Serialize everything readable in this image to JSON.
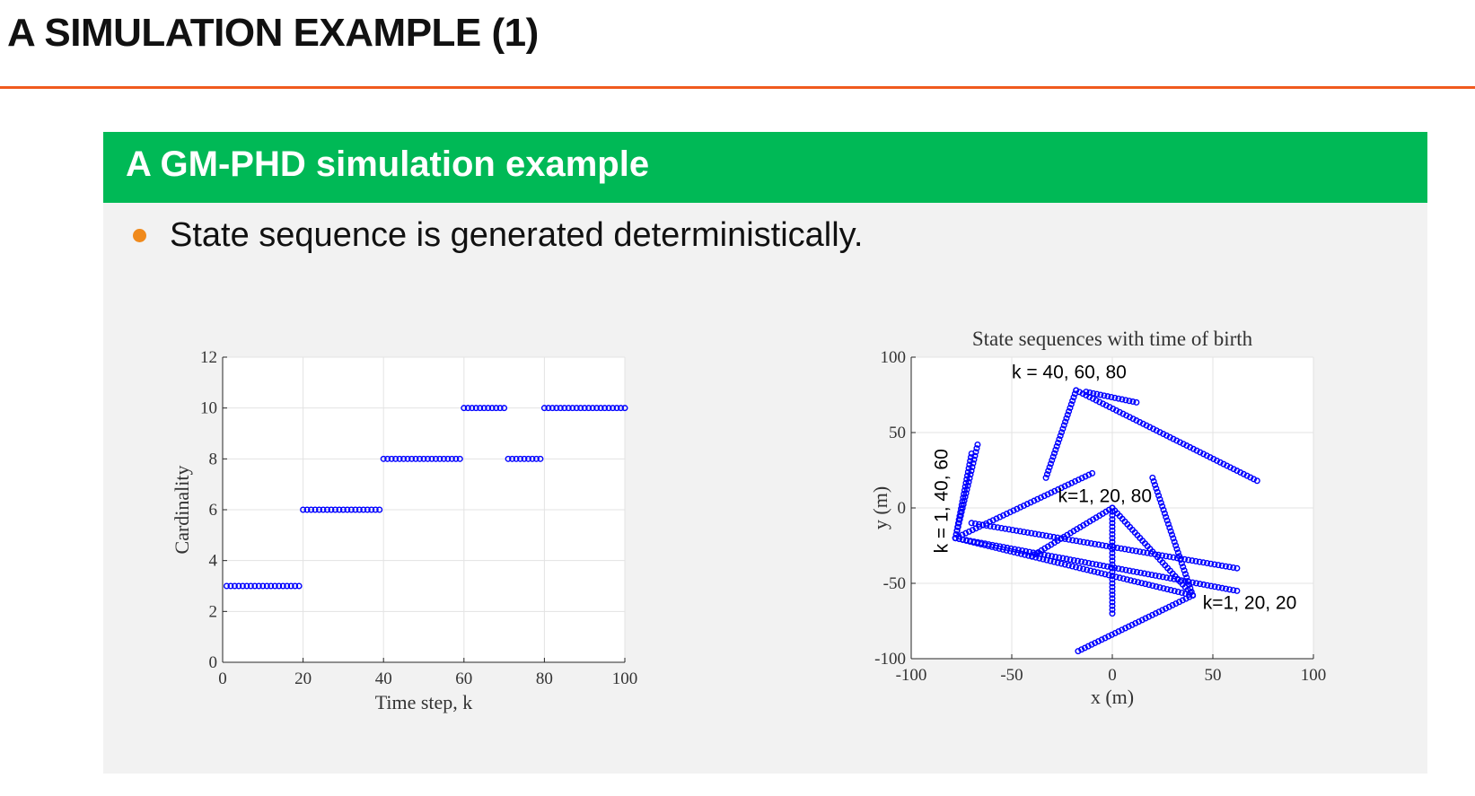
{
  "slide": {
    "title": "A SIMULATION EXAMPLE (1)",
    "block_title": "A GM-PHD simulation example",
    "bullet": "State sequence is generated deterministically."
  },
  "colors": {
    "title_rule": "#f05a1e",
    "block_header": "#00b956",
    "block_body": "#f2f2f2",
    "bullet": "#f08a1c",
    "marker": "#0000ff"
  },
  "chart_data": [
    {
      "type": "scatter",
      "marker": "open-circle",
      "title": "",
      "xlabel": "Time step, k",
      "ylabel": "Cardinality",
      "xlim": [
        0,
        100
      ],
      "ylim": [
        0,
        12
      ],
      "xticks": [
        0,
        20,
        40,
        60,
        80,
        100
      ],
      "yticks": [
        0,
        2,
        4,
        6,
        8,
        10,
        12
      ],
      "grid": true,
      "segments": [
        {
          "x_range": [
            1,
            19
          ],
          "y": 3
        },
        {
          "x_range": [
            20,
            39
          ],
          "y": 6
        },
        {
          "x_range": [
            40,
            59
          ],
          "y": 8
        },
        {
          "x_range": [
            60,
            70
          ],
          "y": 10
        },
        {
          "x_range": [
            71,
            79
          ],
          "y": 8
        },
        {
          "x_range": [
            80,
            100
          ],
          "y": 10
        }
      ]
    },
    {
      "type": "scatter",
      "marker": "open-circle",
      "title": "State sequences with time of birth",
      "xlabel": "x (m)",
      "ylabel": "y (m)",
      "xlim": [
        -100,
        100
      ],
      "ylim": [
        -100,
        100
      ],
      "xticks": [
        -100,
        -50,
        0,
        50,
        100
      ],
      "yticks": [
        -100,
        -50,
        0,
        50,
        100
      ],
      "grid": true,
      "tracks": [
        {
          "start": [
            -18,
            78
          ],
          "end": [
            -33,
            20
          ]
        },
        {
          "start": [
            -18,
            78
          ],
          "end": [
            72,
            18
          ]
        },
        {
          "start": [
            -13,
            77
          ],
          "end": [
            12,
            70
          ]
        },
        {
          "start": [
            -67,
            42
          ],
          "end": [
            -78,
            -20
          ]
        },
        {
          "start": [
            -78,
            -20
          ],
          "end": [
            -10,
            23
          ]
        },
        {
          "start": [
            -78,
            -20
          ],
          "end": [
            40,
            -58
          ]
        },
        {
          "start": [
            -78,
            -20
          ],
          "end": [
            62,
            -55
          ]
        },
        {
          "start": [
            -78,
            -20
          ],
          "end": [
            -70,
            36
          ]
        },
        {
          "start": [
            -70,
            -10
          ],
          "end": [
            62,
            -40
          ]
        },
        {
          "start": [
            0,
            0
          ],
          "end": [
            -40,
            -32
          ]
        },
        {
          "start": [
            0,
            0
          ],
          "end": [
            0,
            -70
          ]
        },
        {
          "start": [
            0,
            0
          ],
          "end": [
            40,
            -58
          ]
        },
        {
          "start": [
            -17,
            -95
          ],
          "end": [
            40,
            -58
          ]
        },
        {
          "start": [
            40,
            -58
          ],
          "end": [
            20,
            20
          ]
        }
      ],
      "annotations": [
        {
          "text": "k = 40, 60, 80",
          "x": -50,
          "y": 86
        },
        {
          "text": "k=1, 20, 80",
          "x": -27,
          "y": 4
        },
        {
          "text": "k=1, 20, 20",
          "x": 45,
          "y": -67
        },
        {
          "text": "k = 1, 40, 60",
          "x": -82,
          "y": -30,
          "rotate": -90
        }
      ]
    }
  ]
}
